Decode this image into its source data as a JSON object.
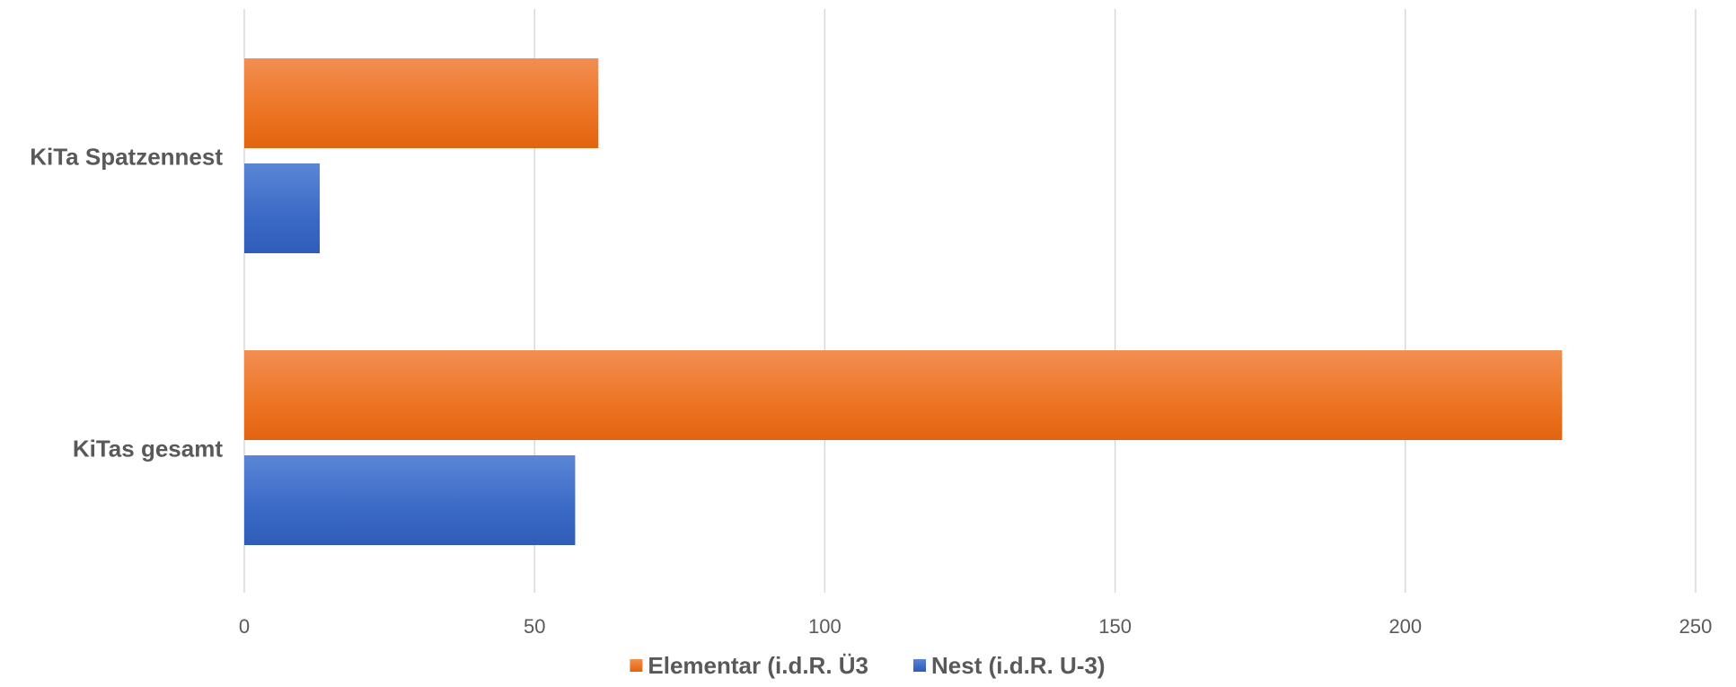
{
  "chart_data": {
    "type": "bar",
    "orientation": "horizontal",
    "categories": [
      "KiTa Spatzennest",
      "KiTas gesamt"
    ],
    "series": [
      {
        "name": "Elementar (i.d.R. Ü3",
        "color": "#ED7D31",
        "values": [
          61,
          227
        ]
      },
      {
        "name": "Nest (i.d.R. U-3)",
        "color": "#4472C4",
        "values": [
          13,
          57
        ]
      }
    ],
    "xlim": [
      0,
      250
    ],
    "x_ticks": [
      "0",
      "50",
      "100",
      "150",
      "200",
      "250"
    ],
    "grid": true,
    "legend_position": "bottom",
    "title": "",
    "xlabel": "",
    "ylabel": ""
  }
}
